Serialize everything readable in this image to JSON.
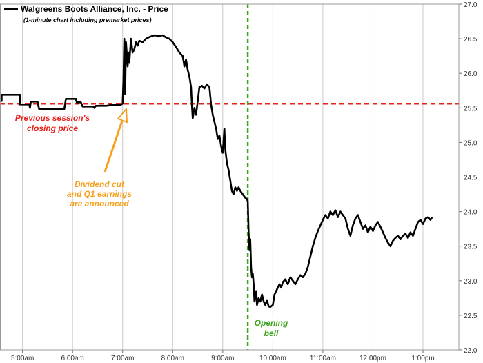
{
  "chart_data": {
    "type": "line",
    "title": "Walgreens Boots Alliance, Inc. - Price",
    "subtitle": "(1-minute chart including premarket prices)",
    "legend": {
      "placement": "top-left",
      "entries": [
        "Walgreens Boots Alliance, Inc. - Price"
      ]
    },
    "x_ticks": [
      "5:00am",
      "6:00am",
      "7:00am",
      "8:00am",
      "9:00am",
      "10:00am",
      "11:00am",
      "12:00pm",
      "1:00pm"
    ],
    "xlim": [
      "4:33am",
      "1:43pm"
    ],
    "ylim": [
      22.0,
      27.0
    ],
    "y_ticks": [
      "22.0",
      "22.5",
      "23.0",
      "23.5",
      "24.0",
      "24.5",
      "25.0",
      "25.5",
      "26.0",
      "26.5",
      "27.0"
    ],
    "y_axis_side": "right",
    "grid": {
      "vertical": true,
      "horizontal": false
    },
    "series": [
      {
        "name": "Walgreens Boots Alliance, Inc. - Price",
        "color": "#000000",
        "points": [
          [
            "4:33am",
            25.6
          ],
          [
            "4:35am",
            25.6
          ],
          [
            "4:35am",
            25.69
          ],
          [
            "4:57am",
            25.69
          ],
          [
            "4:57am",
            25.55
          ],
          [
            "5:08am",
            25.55
          ],
          [
            "5:09am",
            25.5
          ],
          [
            "5:10am",
            25.59
          ],
          [
            "5:18am",
            25.59
          ],
          [
            "5:19am",
            25.53
          ],
          [
            "5:20am",
            25.48
          ],
          [
            "5:50am",
            25.48
          ],
          [
            "5:52am",
            25.63
          ],
          [
            "6:04am",
            25.63
          ],
          [
            "6:05am",
            25.58
          ],
          [
            "6:10am",
            25.58
          ],
          [
            "6:12am",
            25.52
          ],
          [
            "6:25am",
            25.52
          ],
          [
            "6:26am",
            25.5
          ],
          [
            "6:28am",
            25.53
          ],
          [
            "6:40am",
            25.53
          ],
          [
            "6:47am",
            25.54
          ],
          [
            "6:57am",
            25.54
          ],
          [
            "7:00am",
            25.56
          ],
          [
            "7:01am",
            25.9
          ],
          [
            "7:02am",
            26.5
          ],
          [
            "7:03am",
            25.7
          ],
          [
            "7:04am",
            26.45
          ],
          [
            "7:06am",
            26.1
          ],
          [
            "7:07am",
            26.3
          ],
          [
            "7:08am",
            26.15
          ],
          [
            "7:10am",
            26.5
          ],
          [
            "7:12am",
            26.3
          ],
          [
            "7:14am",
            26.35
          ],
          [
            "7:16am",
            26.45
          ],
          [
            "7:18am",
            26.4
          ],
          [
            "7:20am",
            26.47
          ],
          [
            "7:24am",
            26.45
          ],
          [
            "7:28am",
            26.5
          ],
          [
            "7:33am",
            26.53
          ],
          [
            "7:38am",
            26.55
          ],
          [
            "7:43am",
            26.54
          ],
          [
            "7:48am",
            26.55
          ],
          [
            "7:52am",
            26.52
          ],
          [
            "7:56am",
            26.5
          ],
          [
            "8:00am",
            26.45
          ],
          [
            "8:04am",
            26.38
          ],
          [
            "8:08am",
            26.3
          ],
          [
            "8:12am",
            26.25
          ],
          [
            "8:14am",
            26.1
          ],
          [
            "8:16am",
            26.2
          ],
          [
            "8:18am",
            26.05
          ],
          [
            "8:20am",
            25.95
          ],
          [
            "8:22am",
            25.8
          ],
          [
            "8:23am",
            25.55
          ],
          [
            "8:24am",
            25.35
          ],
          [
            "8:26am",
            25.5
          ],
          [
            "8:28am",
            25.4
          ],
          [
            "8:30am",
            25.6
          ],
          [
            "8:32am",
            25.8
          ],
          [
            "8:35am",
            25.82
          ],
          [
            "8:38am",
            25.78
          ],
          [
            "8:41am",
            25.84
          ],
          [
            "8:44am",
            25.8
          ],
          [
            "8:46am",
            25.55
          ],
          [
            "8:48am",
            25.4
          ],
          [
            "8:50am",
            25.3
          ],
          [
            "8:52am",
            25.2
          ],
          [
            "8:54am",
            25.05
          ],
          [
            "8:56am",
            25.1
          ],
          [
            "8:58am",
            24.95
          ],
          [
            "9:00am",
            24.85
          ],
          [
            "9:02am",
            25.2
          ],
          [
            "9:03am",
            24.9
          ],
          [
            "9:05am",
            24.7
          ],
          [
            "9:07am",
            24.6
          ],
          [
            "9:09am",
            24.45
          ],
          [
            "9:11am",
            24.3
          ],
          [
            "9:13am",
            24.25
          ],
          [
            "9:15am",
            24.35
          ],
          [
            "9:17am",
            24.3
          ],
          [
            "9:19am",
            24.35
          ],
          [
            "9:21am",
            24.3
          ],
          [
            "9:24am",
            24.25
          ],
          [
            "9:27am",
            24.2
          ],
          [
            "9:29am",
            24.18
          ],
          [
            "9:30am",
            24.15
          ],
          [
            "9:31am",
            23.7
          ],
          [
            "9:32am",
            23.45
          ],
          [
            "9:33am",
            23.6
          ],
          [
            "9:34am",
            23.2
          ],
          [
            "9:35am",
            23.05
          ],
          [
            "9:36am",
            23.1
          ],
          [
            "9:37am",
            22.95
          ],
          [
            "9:38am",
            22.7
          ],
          [
            "9:40am",
            22.85
          ],
          [
            "9:41am",
            22.65
          ],
          [
            "9:43am",
            22.75
          ],
          [
            "9:45am",
            22.7
          ],
          [
            "9:47am",
            22.8
          ],
          [
            "9:49am",
            22.7
          ],
          [
            "9:51am",
            22.65
          ],
          [
            "9:53am",
            22.72
          ],
          [
            "9:55am",
            22.63
          ],
          [
            "9:57am",
            22.62
          ],
          [
            "10:00am",
            22.65
          ],
          [
            "10:02am",
            22.8
          ],
          [
            "10:04am",
            22.85
          ],
          [
            "10:06am",
            22.9
          ],
          [
            "10:08am",
            22.95
          ],
          [
            "10:10am",
            22.9
          ],
          [
            "10:12am",
            22.98
          ],
          [
            "10:15am",
            23.02
          ],
          [
            "10:18am",
            22.95
          ],
          [
            "10:21am",
            23.05
          ],
          [
            "10:24am",
            23.0
          ],
          [
            "10:27am",
            22.95
          ],
          [
            "10:30am",
            23.02
          ],
          [
            "10:33am",
            23.08
          ],
          [
            "10:36am",
            23.05
          ],
          [
            "10:39am",
            23.1
          ],
          [
            "10:42am",
            23.2
          ],
          [
            "10:45am",
            23.35
          ],
          [
            "10:48am",
            23.5
          ],
          [
            "10:51am",
            23.62
          ],
          [
            "10:54am",
            23.72
          ],
          [
            "10:57am",
            23.8
          ],
          [
            "11:00am",
            23.88
          ],
          [
            "11:03am",
            23.95
          ],
          [
            "11:06am",
            23.9
          ],
          [
            "11:09am",
            24.0
          ],
          [
            "11:12am",
            23.95
          ],
          [
            "11:15am",
            24.02
          ],
          [
            "11:18am",
            23.92
          ],
          [
            "11:21am",
            24.0
          ],
          [
            "11:24am",
            23.95
          ],
          [
            "11:27am",
            23.9
          ],
          [
            "11:30am",
            23.75
          ],
          [
            "11:33am",
            23.65
          ],
          [
            "11:36am",
            23.8
          ],
          [
            "11:39am",
            23.9
          ],
          [
            "11:42am",
            23.95
          ],
          [
            "11:45am",
            23.85
          ],
          [
            "11:48am",
            23.75
          ],
          [
            "11:51am",
            23.8
          ],
          [
            "11:54am",
            23.7
          ],
          [
            "11:57am",
            23.78
          ],
          [
            "12:00pm",
            23.72
          ],
          [
            "12:03pm",
            23.8
          ],
          [
            "12:06pm",
            23.85
          ],
          [
            "12:09pm",
            23.78
          ],
          [
            "12:12pm",
            23.7
          ],
          [
            "12:15pm",
            23.62
          ],
          [
            "12:18pm",
            23.55
          ],
          [
            "12:21pm",
            23.5
          ],
          [
            "12:24pm",
            23.58
          ],
          [
            "12:27pm",
            23.62
          ],
          [
            "12:30pm",
            23.65
          ],
          [
            "12:33pm",
            23.6
          ],
          [
            "12:36pm",
            23.65
          ],
          [
            "12:39pm",
            23.68
          ],
          [
            "12:42pm",
            23.62
          ],
          [
            "12:45pm",
            23.7
          ],
          [
            "12:48pm",
            23.65
          ],
          [
            "12:51pm",
            23.75
          ],
          [
            "12:54pm",
            23.85
          ],
          [
            "12:57pm",
            23.88
          ],
          [
            "1:00pm",
            23.82
          ],
          [
            "1:03pm",
            23.9
          ],
          [
            "1:06pm",
            23.92
          ],
          [
            "1:09pm",
            23.88
          ],
          [
            "1:11pm",
            23.92
          ]
        ]
      }
    ],
    "reference_lines": [
      {
        "kind": "horizontal",
        "value": 25.56,
        "color": "#e8201a",
        "style": "dashed"
      },
      {
        "kind": "vertical",
        "x": "9:30am",
        "color": "#3da61f",
        "style": "dashed"
      }
    ],
    "annotations": [
      {
        "id": "prev-close",
        "color": "#e8201a",
        "lines": [
          "Previous session's",
          "closing price"
        ]
      },
      {
        "id": "dividend",
        "color": "#f5a11e",
        "lines": [
          "Dividend cut",
          "and Q1 earnings",
          "are announced"
        ],
        "arrow_to": [
          "7:00am",
          25.56
        ]
      },
      {
        "id": "open",
        "color": "#3da61f",
        "lines": [
          "Opening",
          "bell"
        ]
      }
    ]
  }
}
